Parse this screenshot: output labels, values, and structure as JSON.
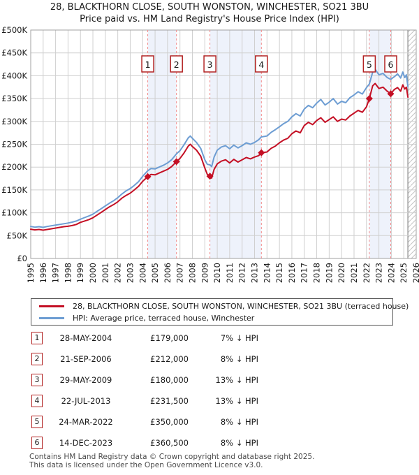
{
  "chart_data": {
    "type": "line",
    "title": "28, BLACKTHORN CLOSE, SOUTH WONSTON, WINCHESTER, SO21 3BU",
    "subtitle": "Price paid vs. HM Land Registry's House Price Index (HPI)",
    "x_axis": {
      "min": 1995,
      "max": 2026,
      "years": [
        1995,
        1996,
        1997,
        1998,
        1999,
        2000,
        2001,
        2002,
        2003,
        2004,
        2005,
        2006,
        2007,
        2008,
        2009,
        2010,
        2011,
        2012,
        2013,
        2014,
        2015,
        2016,
        2017,
        2018,
        2019,
        2020,
        2021,
        2022,
        2023,
        2024,
        2025,
        2026
      ]
    },
    "y_axis": {
      "unit": "GBP thousands",
      "min": 0,
      "max": 500,
      "ticks": [
        {
          "v": 0,
          "label": "£0"
        },
        {
          "v": 50,
          "label": "£50K"
        },
        {
          "v": 100,
          "label": "£100K"
        },
        {
          "v": 150,
          "label": "£150K"
        },
        {
          "v": 200,
          "label": "£200K"
        },
        {
          "v": 250,
          "label": "£250K"
        },
        {
          "v": 300,
          "label": "£300K"
        },
        {
          "v": 350,
          "label": "£350K"
        },
        {
          "v": 400,
          "label": "£400K"
        },
        {
          "v": 450,
          "label": "£450K"
        },
        {
          "v": 500,
          "label": "£500K"
        }
      ]
    },
    "hatch_start_year": 2025.33,
    "colors": {
      "price": "#c40f24",
      "hpi": "#6d9dd3",
      "band": "#eef2fb",
      "dashed": "#f28b8b",
      "grid": "#cfcfcf",
      "border": "#a0a0a0",
      "hatch": "#c4c4c4",
      "hatch_edge": "#888888",
      "box_border": "#b22222"
    },
    "series": [
      {
        "id": "price_paid",
        "legend": "28, BLACKTHORN CLOSE, SOUTH WONSTON, WINCHESTER, SO21 3BU (terraced house)",
        "color_key": "price",
        "points": [
          [
            1995.0,
            64
          ],
          [
            1995.33,
            62.5
          ],
          [
            1995.67,
            63.5
          ],
          [
            1996.0,
            62
          ],
          [
            1996.33,
            63.5
          ],
          [
            1996.67,
            65
          ],
          [
            1997.0,
            66.5
          ],
          [
            1997.33,
            68
          ],
          [
            1997.67,
            69.5
          ],
          [
            1998.0,
            70.5
          ],
          [
            1998.33,
            72
          ],
          [
            1998.67,
            74.5
          ],
          [
            1999.0,
            79
          ],
          [
            1999.33,
            82
          ],
          [
            1999.67,
            85
          ],
          [
            2000.0,
            89
          ],
          [
            2000.33,
            95
          ],
          [
            2000.67,
            101
          ],
          [
            2001.0,
            107
          ],
          [
            2001.33,
            113
          ],
          [
            2001.67,
            118
          ],
          [
            2002.0,
            124
          ],
          [
            2002.33,
            132
          ],
          [
            2002.67,
            138
          ],
          [
            2003.0,
            143
          ],
          [
            2003.33,
            150
          ],
          [
            2003.67,
            158
          ],
          [
            2004.0,
            169
          ],
          [
            2004.41,
            179
          ],
          [
            2004.67,
            184
          ],
          [
            2005.0,
            183
          ],
          [
            2005.33,
            187
          ],
          [
            2005.67,
            191
          ],
          [
            2006.0,
            195
          ],
          [
            2006.33,
            201
          ],
          [
            2006.72,
            212
          ],
          [
            2007.0,
            219
          ],
          [
            2007.33,
            231
          ],
          [
            2007.67,
            246
          ],
          [
            2007.83,
            250
          ],
          [
            2008.0,
            245
          ],
          [
            2008.33,
            237
          ],
          [
            2008.67,
            224
          ],
          [
            2009.0,
            198
          ],
          [
            2009.2,
            184
          ],
          [
            2009.41,
            180
          ],
          [
            2009.55,
            176
          ],
          [
            2009.75,
            195
          ],
          [
            2010.0,
            207
          ],
          [
            2010.33,
            213
          ],
          [
            2010.67,
            216
          ],
          [
            2011.0,
            209
          ],
          [
            2011.33,
            217
          ],
          [
            2011.67,
            211
          ],
          [
            2012.0,
            216
          ],
          [
            2012.33,
            221
          ],
          [
            2012.67,
            218
          ],
          [
            2013.0,
            222
          ],
          [
            2013.33,
            225
          ],
          [
            2013.55,
            231.5
          ],
          [
            2014.0,
            233
          ],
          [
            2014.33,
            241
          ],
          [
            2014.67,
            246
          ],
          [
            2015.0,
            253
          ],
          [
            2015.33,
            259
          ],
          [
            2015.67,
            263
          ],
          [
            2016.0,
            273
          ],
          [
            2016.33,
            279
          ],
          [
            2016.67,
            275
          ],
          [
            2017.0,
            291
          ],
          [
            2017.33,
            298
          ],
          [
            2017.67,
            293
          ],
          [
            2018.0,
            302
          ],
          [
            2018.33,
            308
          ],
          [
            2018.67,
            298
          ],
          [
            2019.0,
            304
          ],
          [
            2019.33,
            310
          ],
          [
            2019.67,
            300
          ],
          [
            2020.0,
            305
          ],
          [
            2020.33,
            303
          ],
          [
            2020.67,
            312
          ],
          [
            2021.0,
            318
          ],
          [
            2021.33,
            324
          ],
          [
            2021.67,
            320
          ],
          [
            2022.0,
            332
          ],
          [
            2022.23,
            350
          ],
          [
            2022.5,
            378
          ],
          [
            2022.7,
            383
          ],
          [
            2023.0,
            372
          ],
          [
            2023.33,
            375
          ],
          [
            2023.67,
            366
          ],
          [
            2023.95,
            360.5
          ],
          [
            2024.25,
            370
          ],
          [
            2024.5,
            374
          ],
          [
            2024.75,
            366
          ],
          [
            2024.92,
            380
          ],
          [
            2025.08,
            371
          ],
          [
            2025.21,
            375
          ],
          [
            2025.33,
            353
          ]
        ]
      },
      {
        "id": "hpi",
        "legend": "HPI: Average price, terraced house, Winchester",
        "color_key": "hpi",
        "points": [
          [
            1995.0,
            70
          ],
          [
            1995.33,
            68.5
          ],
          [
            1995.67,
            69.5
          ],
          [
            1996.0,
            68
          ],
          [
            1996.33,
            70
          ],
          [
            1996.67,
            71.5
          ],
          [
            1997.0,
            73
          ],
          [
            1997.33,
            74.5
          ],
          [
            1997.67,
            76
          ],
          [
            1998.0,
            77.5
          ],
          [
            1998.33,
            79.5
          ],
          [
            1998.67,
            82
          ],
          [
            1999.0,
            86
          ],
          [
            1999.33,
            89.5
          ],
          [
            1999.67,
            93
          ],
          [
            2000.0,
            97
          ],
          [
            2000.33,
            103
          ],
          [
            2000.67,
            109
          ],
          [
            2001.0,
            115
          ],
          [
            2001.33,
            121
          ],
          [
            2001.67,
            126.5
          ],
          [
            2002.0,
            133
          ],
          [
            2002.33,
            141
          ],
          [
            2002.67,
            148
          ],
          [
            2003.0,
            153
          ],
          [
            2003.33,
            160
          ],
          [
            2003.67,
            168
          ],
          [
            2004.0,
            180
          ],
          [
            2004.41,
            192
          ],
          [
            2004.67,
            197
          ],
          [
            2005.0,
            196
          ],
          [
            2005.33,
            200
          ],
          [
            2005.67,
            204
          ],
          [
            2006.0,
            209
          ],
          [
            2006.33,
            216
          ],
          [
            2006.72,
            229
          ],
          [
            2007.0,
            236
          ],
          [
            2007.33,
            249
          ],
          [
            2007.67,
            264
          ],
          [
            2007.83,
            268
          ],
          [
            2008.0,
            263
          ],
          [
            2008.33,
            254
          ],
          [
            2008.67,
            241
          ],
          [
            2009.0,
            216
          ],
          [
            2009.2,
            206
          ],
          [
            2009.41,
            205
          ],
          [
            2009.55,
            201
          ],
          [
            2009.75,
            222
          ],
          [
            2010.0,
            237
          ],
          [
            2010.33,
            244
          ],
          [
            2010.67,
            247
          ],
          [
            2011.0,
            240
          ],
          [
            2011.33,
            248
          ],
          [
            2011.67,
            242
          ],
          [
            2012.0,
            247
          ],
          [
            2012.33,
            253
          ],
          [
            2012.67,
            250
          ],
          [
            2013.0,
            254
          ],
          [
            2013.33,
            260
          ],
          [
            2013.55,
            266
          ],
          [
            2014.0,
            268
          ],
          [
            2014.33,
            276
          ],
          [
            2014.67,
            282
          ],
          [
            2015.0,
            288
          ],
          [
            2015.33,
            295
          ],
          [
            2015.67,
            300
          ],
          [
            2016.0,
            310
          ],
          [
            2016.33,
            317
          ],
          [
            2016.67,
            312
          ],
          [
            2017.0,
            327
          ],
          [
            2017.33,
            335
          ],
          [
            2017.67,
            330
          ],
          [
            2018.0,
            340
          ],
          [
            2018.33,
            348
          ],
          [
            2018.67,
            336
          ],
          [
            2019.0,
            342
          ],
          [
            2019.33,
            350
          ],
          [
            2019.67,
            338
          ],
          [
            2020.0,
            344
          ],
          [
            2020.33,
            341
          ],
          [
            2020.67,
            352
          ],
          [
            2021.0,
            358
          ],
          [
            2021.33,
            365
          ],
          [
            2021.67,
            360
          ],
          [
            2022.0,
            374
          ],
          [
            2022.23,
            382
          ],
          [
            2022.5,
            408
          ],
          [
            2022.7,
            414
          ],
          [
            2023.0,
            402
          ],
          [
            2023.33,
            405
          ],
          [
            2023.67,
            396
          ],
          [
            2023.95,
            392
          ],
          [
            2024.25,
            398
          ],
          [
            2024.5,
            404
          ],
          [
            2024.75,
            395
          ],
          [
            2024.92,
            408
          ],
          [
            2025.08,
            396
          ],
          [
            2025.21,
            402
          ],
          [
            2025.33,
            376
          ]
        ]
      }
    ],
    "sales": [
      {
        "num": "1",
        "year": 2004.41,
        "price_k": 179,
        "date": "28-MAY-2004",
        "price": "£179,000",
        "vs_hpi": "7% ↓ HPI"
      },
      {
        "num": "2",
        "year": 2006.72,
        "price_k": 212,
        "date": "21-SEP-2006",
        "price": "£212,000",
        "vs_hpi": "8% ↓ HPI"
      },
      {
        "num": "3",
        "year": 2009.41,
        "price_k": 180,
        "date": "29-MAY-2009",
        "price": "£180,000",
        "vs_hpi": "13% ↓ HPI"
      },
      {
        "num": "4",
        "year": 2013.55,
        "price_k": 231.5,
        "date": "22-JUL-2013",
        "price": "£231,500",
        "vs_hpi": "13% ↓ HPI"
      },
      {
        "num": "5",
        "year": 2022.23,
        "price_k": 350,
        "date": "24-MAR-2022",
        "price": "£350,000",
        "vs_hpi": "8% ↓ HPI"
      },
      {
        "num": "6",
        "year": 2023.95,
        "price_k": 360.5,
        "date": "14-DEC-2023",
        "price": "£360,500",
        "vs_hpi": "8% ↓ HPI"
      }
    ],
    "band_pairs": [
      [
        0,
        1
      ],
      [
        2,
        3
      ],
      [
        4,
        5
      ]
    ],
    "grid": true,
    "legend_position": "below"
  },
  "footer": {
    "line1": "Contains HM Land Registry data © Crown copyright and database right 2025.",
    "line2": "This data is licensed under the Open Government Licence v3.0."
  }
}
